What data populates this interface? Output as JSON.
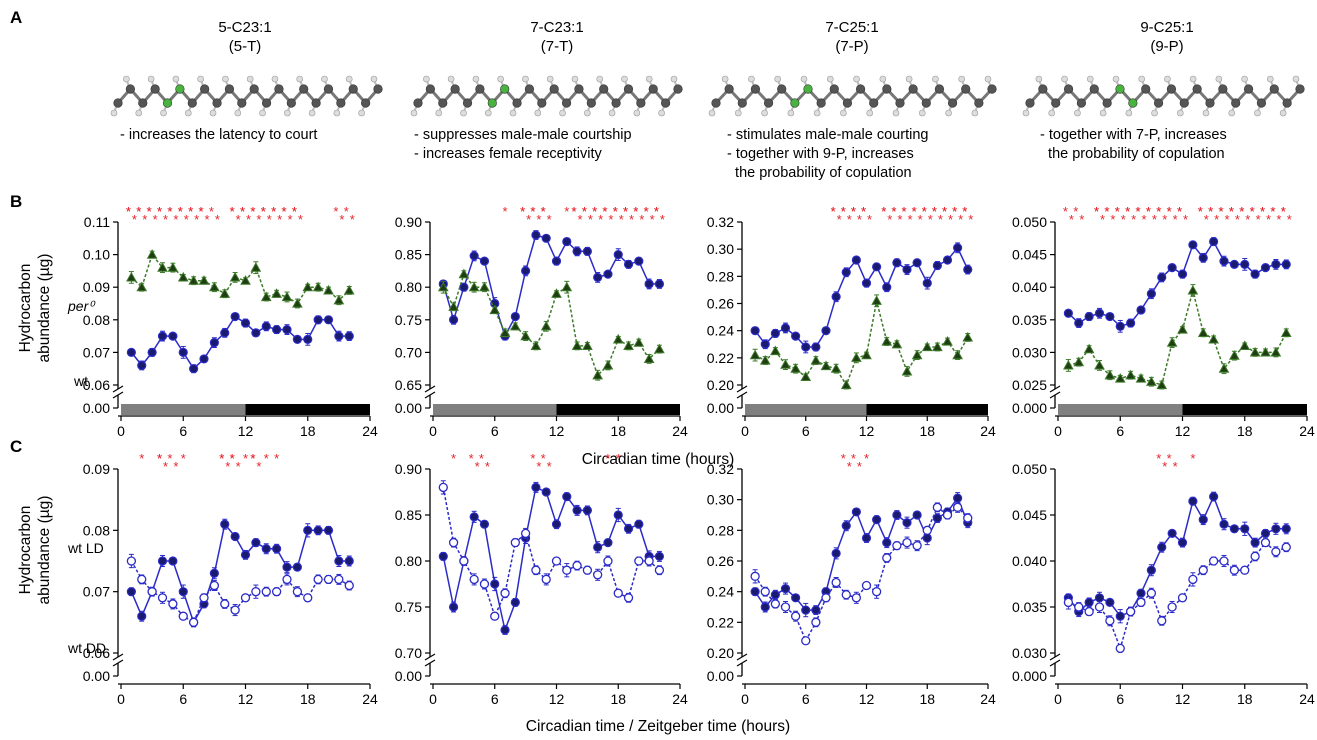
{
  "panel_letters": {
    "a": "A",
    "b": "B",
    "c": "C"
  },
  "compounds": [
    {
      "name": "5-C23:1",
      "abbr": "(5-T)",
      "effects": [
        "- increases the latency to court"
      ]
    },
    {
      "name": "7-C23:1",
      "abbr": "(7-T)",
      "effects": [
        "- suppresses male-male courtship",
        "- increases female receptivity"
      ]
    },
    {
      "name": "7-C25:1",
      "abbr": "(7-P)",
      "effects": [
        "- stimulates male-male courting",
        "- together with 9-P, increases",
        "  the probability of copulation"
      ]
    },
    {
      "name": "9-C25:1",
      "abbr": "(9-P)",
      "effects": [
        "- together with 7-P, increases",
        "  the probability of copulation"
      ]
    }
  ],
  "ylabel_line1": "Hydrocarbon",
  "ylabel_line2": "abundance (µg)",
  "xlabel_B": "Circadian time (hours)",
  "xlabel_C": "Circadian time / Zeitgeber time (hours)",
  "series_labels": {
    "B_wt": "wt",
    "B_per": "per⁰",
    "C_ld": "wt LD",
    "C_dd": "wt DD"
  },
  "colors": {
    "wt": "#2b2bc8",
    "per0": "#3d7a2a",
    "sig": "#e8242a",
    "light": "#808080",
    "dark": "#000000"
  },
  "chart_data": [
    {
      "type": "line",
      "panel": "B",
      "compound": "5-C23:1",
      "ylim": [
        0.06,
        0.11
      ],
      "yticks": [
        "0.06",
        "0.07",
        "0.08",
        "0.09",
        "0.10",
        "0.11"
      ],
      "xticks": [
        0,
        6,
        12,
        18,
        24
      ],
      "x": [
        1,
        2,
        3,
        4,
        5,
        6,
        7,
        8,
        9,
        10,
        11,
        12,
        13,
        14,
        15,
        16,
        17,
        18,
        19,
        20,
        21,
        22
      ],
      "series": [
        {
          "name": "wt",
          "style": "filled-circle",
          "values": [
            0.07,
            0.066,
            0.07,
            0.075,
            0.075,
            0.07,
            0.065,
            0.068,
            0.073,
            0.076,
            0.081,
            0.079,
            0.076,
            0.078,
            0.077,
            0.077,
            0.074,
            0.074,
            0.08,
            0.08,
            0.075,
            0.075
          ]
        },
        {
          "name": "per⁰",
          "style": "triangle-dashed",
          "values": [
            0.093,
            0.09,
            0.1,
            0.096,
            0.096,
            0.093,
            0.092,
            0.092,
            0.09,
            0.088,
            0.093,
            0.092,
            0.096,
            0.087,
            0.088,
            0.087,
            0.085,
            0.09,
            0.09,
            0.089,
            0.086,
            0.089
          ]
        }
      ],
      "sig": [
        "***",
        "***",
        "***",
        "***",
        "***",
        "***",
        "***",
        "***",
        "**",
        "",
        "***",
        "***",
        "***",
        "***",
        "***",
        "***",
        "***",
        "",
        "",
        "",
        "**",
        "**"
      ]
    },
    {
      "type": "line",
      "panel": "B",
      "compound": "7-C23:1",
      "ylim": [
        0.65,
        0.9
      ],
      "yticks": [
        "0.65",
        "0.70",
        "0.75",
        "0.80",
        "0.85",
        "0.90"
      ],
      "xticks": [
        0,
        6,
        12,
        18,
        24
      ],
      "x": [
        1,
        2,
        3,
        4,
        5,
        6,
        7,
        8,
        9,
        10,
        11,
        12,
        13,
        14,
        15,
        16,
        17,
        18,
        19,
        20,
        21,
        22
      ],
      "series": [
        {
          "name": "wt",
          "style": "filled-circle",
          "values": [
            0.805,
            0.75,
            0.8,
            0.848,
            0.84,
            0.775,
            0.725,
            0.755,
            0.825,
            0.88,
            0.875,
            0.84,
            0.87,
            0.855,
            0.855,
            0.815,
            0.82,
            0.85,
            0.835,
            0.84,
            0.805,
            0.805
          ]
        },
        {
          "name": "per⁰",
          "style": "triangle-dashed",
          "values": [
            0.8,
            0.77,
            0.82,
            0.8,
            0.8,
            0.765,
            0.73,
            0.74,
            0.725,
            0.71,
            0.74,
            0.79,
            0.8,
            0.71,
            0.71,
            0.665,
            0.68,
            0.72,
            0.71,
            0.715,
            0.69,
            0.705
          ]
        }
      ],
      "sig": [
        "",
        "",
        "",
        "",
        "",
        "",
        "*",
        "",
        "***",
        "***",
        "***",
        "",
        "*",
        "***",
        "***",
        "***",
        "***",
        "***",
        "***",
        "***",
        "***",
        "***"
      ]
    },
    {
      "type": "line",
      "panel": "B",
      "compound": "7-C25:1",
      "ylim": [
        0.2,
        0.32
      ],
      "yticks": [
        "0.20",
        "0.22",
        "0.24",
        "0.26",
        "0.28",
        "0.30",
        "0.32"
      ],
      "xticks": [
        0,
        6,
        12,
        18,
        24
      ],
      "x": [
        1,
        2,
        3,
        4,
        5,
        6,
        7,
        8,
        9,
        10,
        11,
        12,
        13,
        14,
        15,
        16,
        17,
        18,
        19,
        20,
        21,
        22
      ],
      "series": [
        {
          "name": "wt",
          "style": "filled-circle",
          "values": [
            0.24,
            0.23,
            0.238,
            0.242,
            0.236,
            0.228,
            0.228,
            0.24,
            0.265,
            0.283,
            0.292,
            0.275,
            0.287,
            0.272,
            0.29,
            0.285,
            0.29,
            0.275,
            0.288,
            0.292,
            0.301,
            0.285
          ]
        },
        {
          "name": "per⁰",
          "style": "triangle-dashed",
          "values": [
            0.222,
            0.218,
            0.225,
            0.215,
            0.212,
            0.206,
            0.218,
            0.214,
            0.212,
            0.2,
            0.22,
            0.222,
            0.262,
            0.232,
            0.23,
            0.21,
            0.222,
            0.228,
            0.228,
            0.232,
            0.222,
            0.235
          ]
        }
      ],
      "sig": [
        "",
        "",
        "",
        "",
        "",
        "",
        "",
        "",
        "***",
        "***",
        "***",
        "***",
        "",
        "***",
        "***",
        "***",
        "***",
        "***",
        "***",
        "***",
        "***",
        "***"
      ]
    },
    {
      "type": "line",
      "panel": "B",
      "compound": "9-C25:1",
      "ylim": [
        0.025,
        0.05
      ],
      "yticks": [
        "0.025",
        "0.030",
        "0.035",
        "0.040",
        "0.045",
        "0.050"
      ],
      "xticks": [
        0,
        6,
        12,
        18,
        24
      ],
      "x": [
        1,
        2,
        3,
        4,
        5,
        6,
        7,
        8,
        9,
        10,
        11,
        12,
        13,
        14,
        15,
        16,
        17,
        18,
        19,
        20,
        21,
        22
      ],
      "series": [
        {
          "name": "wt",
          "style": "filled-circle",
          "values": [
            0.036,
            0.0345,
            0.0355,
            0.036,
            0.0355,
            0.034,
            0.0345,
            0.0365,
            0.039,
            0.0415,
            0.043,
            0.042,
            0.0465,
            0.0445,
            0.047,
            0.044,
            0.0435,
            0.0435,
            0.042,
            0.043,
            0.0435,
            0.0435
          ]
        },
        {
          "name": "per⁰",
          "style": "triangle-dashed",
          "values": [
            0.028,
            0.0285,
            0.0305,
            0.028,
            0.0265,
            0.026,
            0.0265,
            0.026,
            0.0255,
            0.025,
            0.0315,
            0.0335,
            0.0395,
            0.033,
            0.032,
            0.0275,
            0.0295,
            0.031,
            0.03,
            0.03,
            0.03,
            0.033
          ]
        }
      ],
      "sig": [
        "**",
        "**",
        "",
        "***",
        "***",
        "***",
        "***",
        "***",
        "***",
        "***",
        "***",
        "***",
        "",
        "***",
        "***",
        "***",
        "***",
        "***",
        "***",
        "***",
        "***",
        "***"
      ]
    },
    {
      "type": "line",
      "panel": "C",
      "compound": "5-C23:1",
      "ylim": [
        0.06,
        0.09
      ],
      "yticks": [
        "0.06",
        "0.07",
        "0.08",
        "0.09"
      ],
      "xticks": [
        0,
        6,
        12,
        18,
        24
      ],
      "x": [
        1,
        2,
        3,
        4,
        5,
        6,
        7,
        8,
        9,
        10,
        11,
        12,
        13,
        14,
        15,
        16,
        17,
        18,
        19,
        20,
        21,
        22
      ],
      "series": [
        {
          "name": "wt LD",
          "style": "filled-circle",
          "values": [
            0.07,
            0.066,
            0.07,
            0.075,
            0.075,
            0.07,
            0.065,
            0.068,
            0.073,
            0.081,
            0.079,
            0.076,
            0.078,
            0.077,
            0.077,
            0.074,
            0.074,
            0.08,
            0.08,
            0.08,
            0.075,
            0.075
          ]
        },
        {
          "name": "wt DD",
          "style": "open-circle-dashed",
          "values": [
            0.075,
            0.072,
            0.07,
            0.069,
            0.068,
            0.066,
            0.065,
            0.069,
            0.071,
            0.068,
            0.067,
            0.069,
            0.07,
            0.07,
            0.07,
            0.072,
            0.07,
            0.069,
            0.072,
            0.072,
            0.072,
            0.071
          ]
        }
      ],
      "sig": [
        "",
        "*",
        "",
        "***",
        "**",
        "*",
        "",
        "",
        "",
        "***",
        "***",
        "*",
        "***",
        "*",
        "*",
        "",
        "",
        "",
        "",
        "",
        "",
        ""
      ]
    },
    {
      "type": "line",
      "panel": "C",
      "compound": "7-C23:1",
      "ylim": [
        0.7,
        0.9
      ],
      "yticks": [
        "0.70",
        "0.75",
        "0.80",
        "0.85",
        "0.90"
      ],
      "xticks": [
        0,
        6,
        12,
        18,
        24
      ],
      "x": [
        1,
        2,
        3,
        4,
        5,
        6,
        7,
        8,
        9,
        10,
        11,
        12,
        13,
        14,
        15,
        16,
        17,
        18,
        19,
        20,
        21,
        22
      ],
      "series": [
        {
          "name": "wt LD",
          "style": "filled-circle",
          "values": [
            0.805,
            0.75,
            0.8,
            0.848,
            0.84,
            0.775,
            0.725,
            0.755,
            0.825,
            0.88,
            0.875,
            0.84,
            0.87,
            0.855,
            0.855,
            0.815,
            0.82,
            0.85,
            0.835,
            0.84,
            0.805,
            0.805
          ]
        },
        {
          "name": "wt DD",
          "style": "open-circle-dashed",
          "values": [
            0.88,
            0.82,
            0.8,
            0.78,
            0.775,
            0.74,
            0.765,
            0.82,
            0.83,
            0.79,
            0.78,
            0.8,
            0.79,
            0.795,
            0.79,
            0.785,
            0.8,
            0.765,
            0.76,
            0.8,
            0.8,
            0.79
          ]
        }
      ],
      "sig": [
        "",
        "*",
        "",
        "**",
        "**",
        "",
        "",
        "",
        "",
        "**",
        "**",
        "",
        "",
        "",
        "",
        "",
        "*",
        "*",
        "",
        "",
        "",
        ""
      ]
    },
    {
      "type": "line",
      "panel": "C",
      "compound": "7-C25:1",
      "ylim": [
        0.2,
        0.32
      ],
      "yticks": [
        "0.20",
        "0.22",
        "0.24",
        "0.26",
        "0.28",
        "0.30",
        "0.32"
      ],
      "xticks": [
        0,
        6,
        12,
        18,
        24
      ],
      "x": [
        1,
        2,
        3,
        4,
        5,
        6,
        7,
        8,
        9,
        10,
        11,
        12,
        13,
        14,
        15,
        16,
        17,
        18,
        19,
        20,
        21,
        22
      ],
      "series": [
        {
          "name": "wt LD",
          "style": "filled-circle",
          "values": [
            0.24,
            0.23,
            0.238,
            0.242,
            0.236,
            0.228,
            0.228,
            0.24,
            0.265,
            0.283,
            0.292,
            0.275,
            0.287,
            0.272,
            0.29,
            0.285,
            0.29,
            0.275,
            0.288,
            0.292,
            0.301,
            0.285
          ]
        },
        {
          "name": "wt DD",
          "style": "open-circle-dashed",
          "values": [
            0.25,
            0.24,
            0.232,
            0.23,
            0.224,
            0.208,
            0.22,
            0.236,
            0.246,
            0.238,
            0.236,
            0.244,
            0.24,
            0.262,
            0.27,
            0.272,
            0.27,
            0.28,
            0.295,
            0.29,
            0.295,
            0.288
          ]
        }
      ],
      "sig": [
        "",
        "",
        "",
        "",
        "",
        "",
        "",
        "",
        "",
        "**",
        "**",
        "*",
        "",
        "",
        "",
        "",
        "",
        "",
        "",
        "",
        "",
        ""
      ]
    },
    {
      "type": "line",
      "panel": "C",
      "compound": "9-C25:1",
      "ylim": [
        0.03,
        0.05
      ],
      "yticks": [
        "0.030",
        "0.035",
        "0.040",
        "0.045",
        "0.050"
      ],
      "xticks": [
        0,
        6,
        12,
        18,
        24
      ],
      "x": [
        1,
        2,
        3,
        4,
        5,
        6,
        7,
        8,
        9,
        10,
        11,
        12,
        13,
        14,
        15,
        16,
        17,
        18,
        19,
        20,
        21,
        22
      ],
      "series": [
        {
          "name": "wt LD",
          "style": "filled-circle",
          "values": [
            0.036,
            0.0345,
            0.0355,
            0.036,
            0.0355,
            0.034,
            0.0345,
            0.0365,
            0.039,
            0.0415,
            0.043,
            0.042,
            0.0465,
            0.0445,
            0.047,
            0.044,
            0.0435,
            0.0435,
            0.042,
            0.043,
            0.0435,
            0.0435
          ]
        },
        {
          "name": "wt DD",
          "style": "open-circle-dashed",
          "values": [
            0.0355,
            0.035,
            0.0345,
            0.035,
            0.0335,
            0.0305,
            0.0345,
            0.0355,
            0.0365,
            0.0335,
            0.035,
            0.036,
            0.038,
            0.039,
            0.04,
            0.04,
            0.039,
            0.039,
            0.0405,
            0.042,
            0.041,
            0.0415
          ]
        }
      ],
      "sig": [
        "",
        "",
        "",
        "",
        "",
        "",
        "",
        "",
        "",
        "**",
        "**",
        "",
        "*",
        "",
        "",
        "",
        "",
        "",
        "",
        "",
        "",
        ""
      ]
    }
  ]
}
